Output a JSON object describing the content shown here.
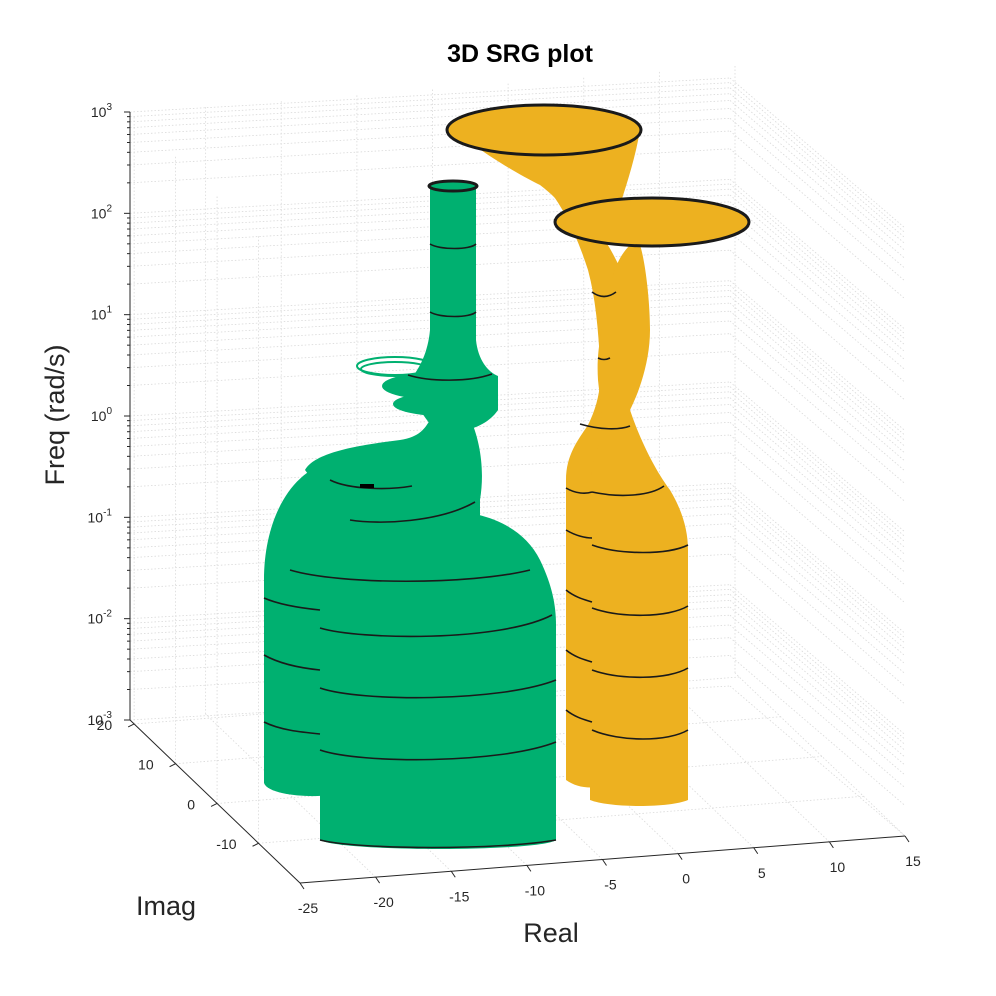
{
  "chart_data": {
    "type": "surface3d",
    "title": "3D SRG plot",
    "xlabel": "Real",
    "ylabel": "Imag",
    "zlabel": "Freq (rad/s)",
    "x_ticks": [
      "-25",
      "-20",
      "-15",
      "-10",
      "-5",
      "0",
      "5",
      "10",
      "15"
    ],
    "y_ticks": [
      "20",
      "10",
      "0",
      "-10"
    ],
    "z_ticks": [
      {
        "base": "10",
        "exp": "-3"
      },
      {
        "base": "10",
        "exp": "-2"
      },
      {
        "base": "10",
        "exp": "-1"
      },
      {
        "base": "10",
        "exp": "0"
      },
      {
        "base": "10",
        "exp": "1"
      },
      {
        "base": "10",
        "exp": "2"
      },
      {
        "base": "10",
        "exp": "3"
      }
    ],
    "xlim": [
      -25,
      15
    ],
    "ylim": [
      -15,
      25
    ],
    "zlim": [
      0.001,
      1000
    ],
    "zscale": "log",
    "grid": true,
    "series": [
      {
        "color": "#00b070",
        "values": "green surface (SRG region)"
      },
      {
        "color": "#edb120",
        "values": "yellow surface (SRG region)"
      }
    ]
  }
}
